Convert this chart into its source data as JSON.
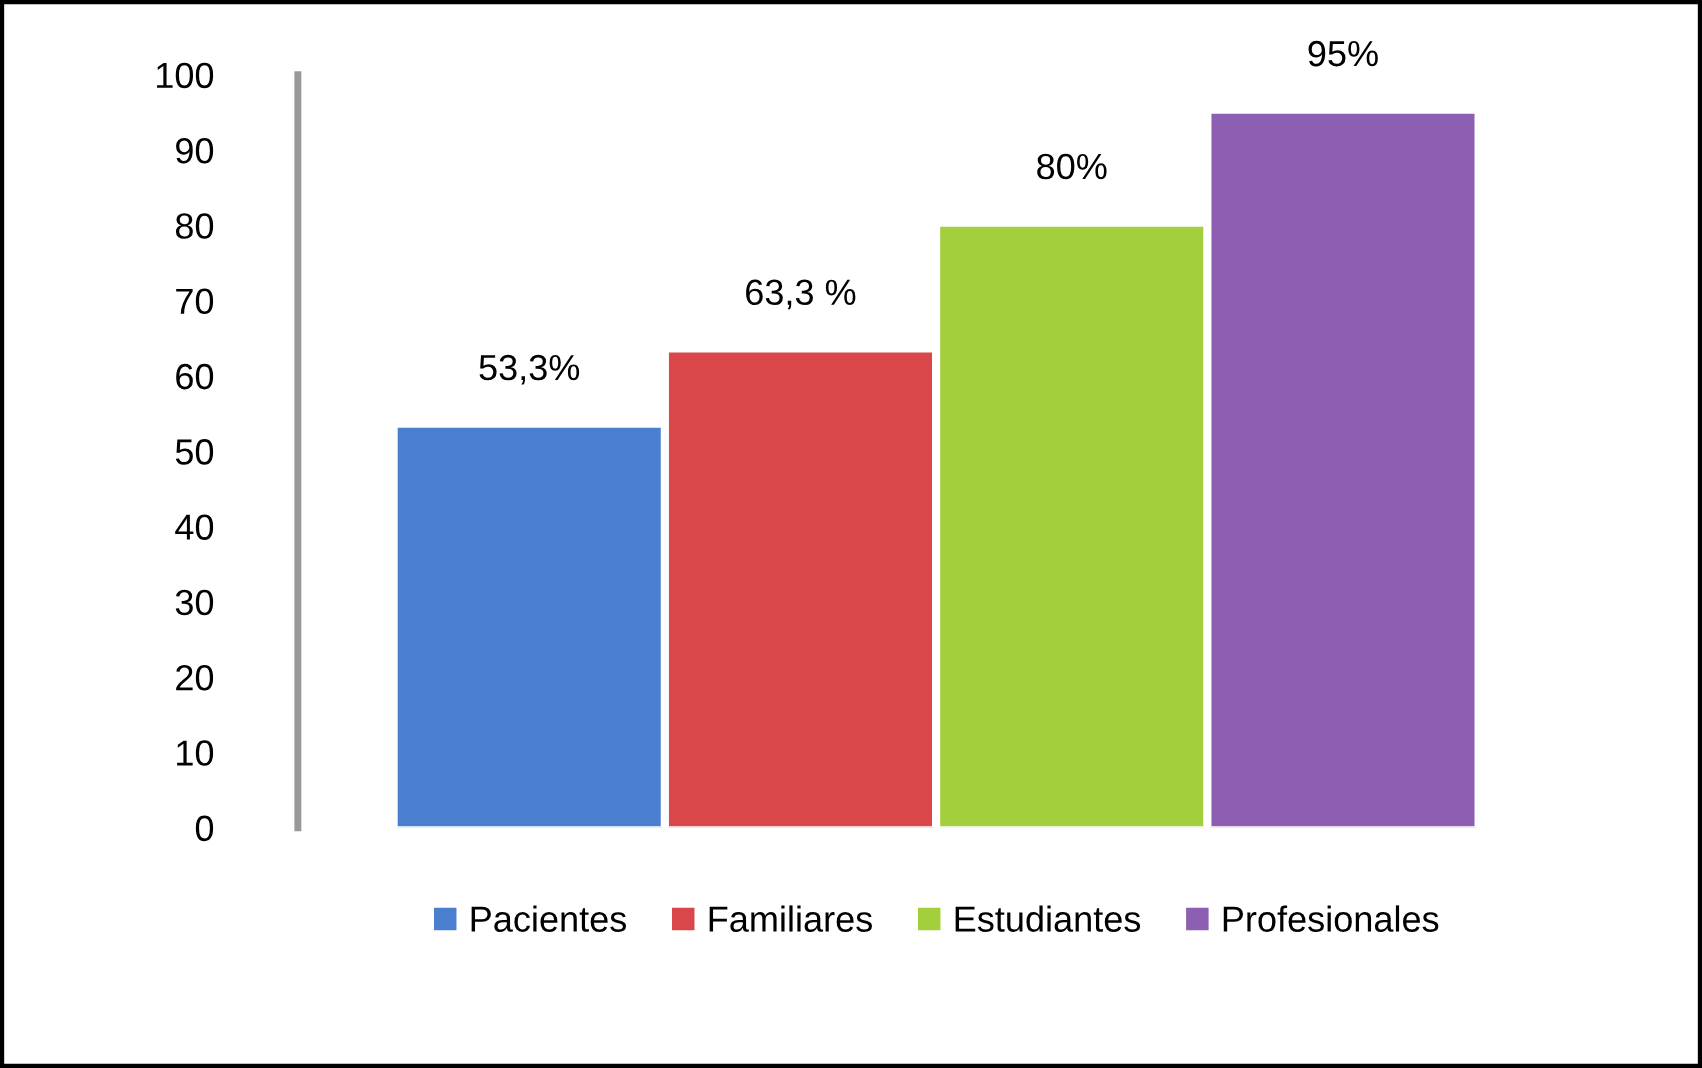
{
  "chart_data": {
    "type": "bar",
    "categories": [
      null
    ],
    "series": [
      {
        "name": "Pacientes",
        "color": "#4a7fd0",
        "values": [
          53.3
        ],
        "value_labels": [
          "53,3%"
        ]
      },
      {
        "name": "Familiares",
        "color": "#d9474b",
        "values": [
          63.3
        ],
        "value_labels": [
          "63,3 %"
        ]
      },
      {
        "name": "Estudiantes",
        "color": "#a4cf3c",
        "values": [
          80
        ],
        "value_labels": [
          "80%"
        ]
      },
      {
        "name": "Profesionales",
        "color": "#8c5fb2",
        "values": [
          95
        ],
        "value_labels": [
          "95%"
        ]
      }
    ],
    "ylim": [
      0,
      100
    ],
    "yticks": [
      0,
      10,
      20,
      30,
      40,
      50,
      60,
      70,
      80,
      90,
      100
    ],
    "grid": false,
    "legend": "bottom"
  }
}
